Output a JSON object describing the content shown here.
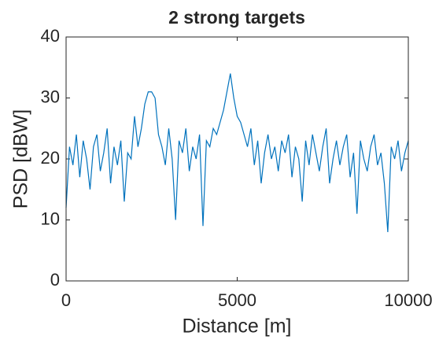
{
  "chart_data": {
    "type": "line",
    "title": "2 strong targets",
    "xlabel": "Distance [m]",
    "ylabel": "PSD [dBW]",
    "x": [
      0,
      100,
      200,
      300,
      400,
      500,
      600,
      700,
      800,
      900,
      1000,
      1100,
      1200,
      1300,
      1400,
      1500,
      1600,
      1700,
      1800,
      1900,
      2000,
      2100,
      2200,
      2300,
      2400,
      2500,
      2600,
      2700,
      2800,
      2900,
      3000,
      3100,
      3200,
      3300,
      3400,
      3500,
      3600,
      3700,
      3800,
      3900,
      4000,
      4100,
      4200,
      4300,
      4400,
      4500,
      4600,
      4700,
      4800,
      4900,
      5000,
      5100,
      5200,
      5300,
      5400,
      5500,
      5600,
      5700,
      5800,
      5900,
      6000,
      6100,
      6200,
      6300,
      6400,
      6500,
      6600,
      6700,
      6800,
      6900,
      7000,
      7100,
      7200,
      7300,
      7400,
      7500,
      7600,
      7700,
      7800,
      7900,
      8000,
      8100,
      8200,
      8300,
      8400,
      8500,
      8600,
      8700,
      8800,
      8900,
      9000,
      9100,
      9200,
      9300,
      9400,
      9500,
      9600,
      9700,
      9800,
      9900,
      10000
    ],
    "series": [
      {
        "color": "#0072BD",
        "values": [
          12,
          22,
          19,
          24,
          17,
          23,
          20,
          15,
          22,
          24,
          18,
          21,
          25,
          16,
          22,
          19,
          23,
          13,
          21,
          20,
          27,
          22,
          25,
          29,
          31,
          31,
          30,
          24,
          22,
          19,
          25,
          20,
          10,
          23,
          21,
          25,
          18,
          22,
          20,
          24,
          9,
          23,
          22,
          25,
          24,
          26,
          28,
          31,
          34,
          30,
          27,
          26,
          24,
          22,
          25,
          19,
          23,
          16,
          21,
          24,
          20,
          22,
          18,
          23,
          21,
          24,
          17,
          22,
          20,
          13,
          23,
          19,
          24,
          21,
          18,
          22,
          25,
          16,
          20,
          23,
          19,
          22,
          24,
          17,
          21,
          11,
          23,
          20,
          18,
          22,
          24,
          19,
          21,
          16,
          8,
          22,
          20,
          23,
          18,
          21,
          23
        ]
      }
    ],
    "xlim": [
      0,
      10000
    ],
    "ylim": [
      0,
      40
    ],
    "xticks": [
      0,
      5000,
      10000
    ],
    "yticks": [
      0,
      10,
      20,
      30,
      40
    ]
  }
}
